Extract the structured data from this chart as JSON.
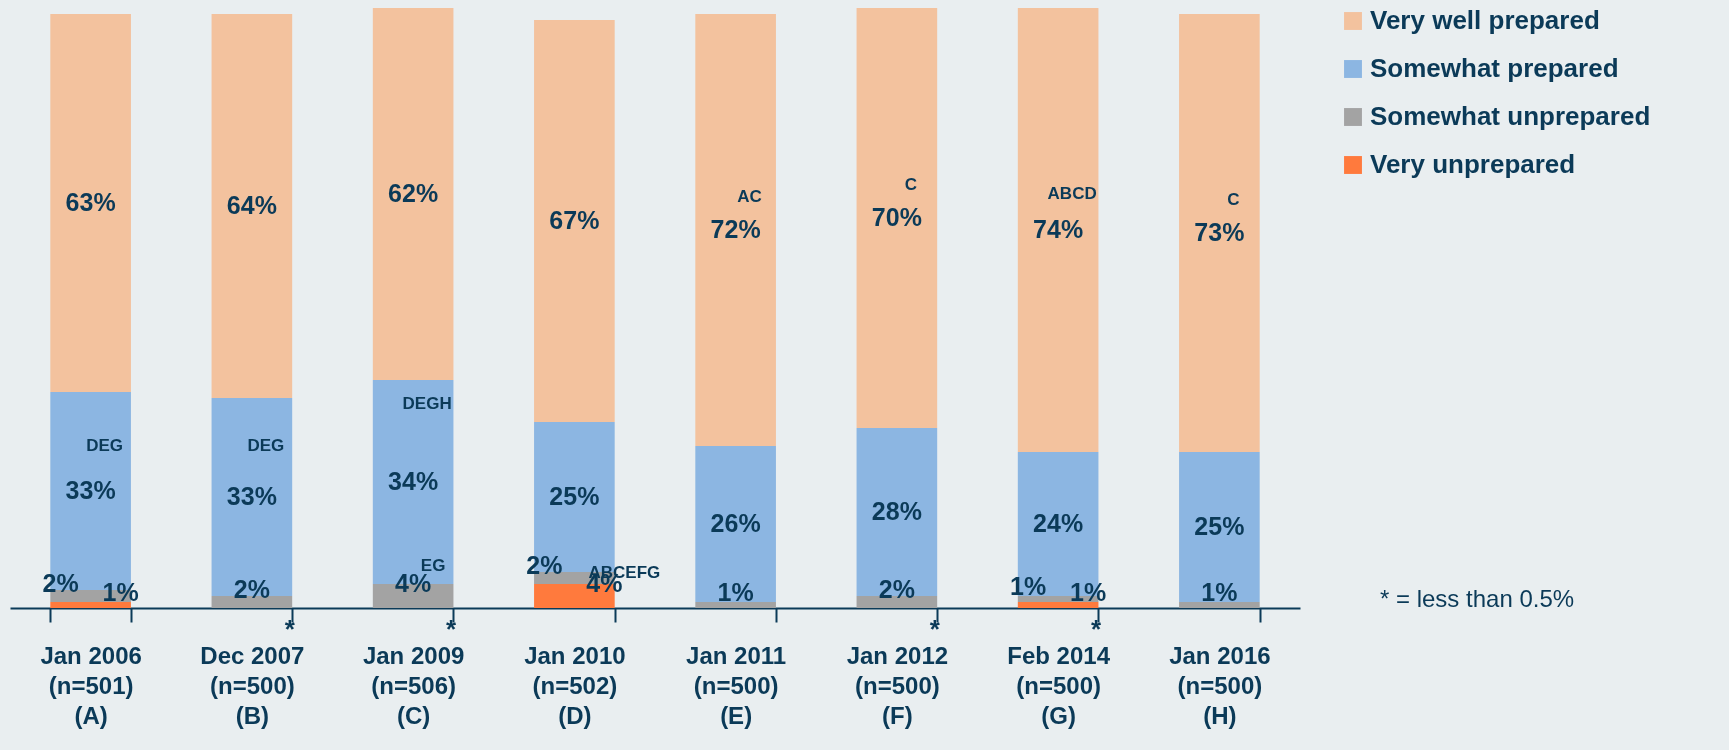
{
  "chart_data": {
    "type": "bar",
    "stacked": true,
    "categories": [
      "Jan 2006\n(n=501)\n(A)",
      "Dec 2007\n(n=500)\n(B)",
      "Jan 2009\n(n=506)\n(C)",
      "Jan 2010\n(n=502)\n(D)",
      "Jan 2011\n(n=500)\n(E)",
      "Jan 2012\n(n=500)\n(F)",
      "Feb 2014\n(n=500)\n(G)",
      "Jan 2016\n(n=500)\n(H)"
    ],
    "series": [
      {
        "name": "Very unprepared",
        "color": "#ff7a3d",
        "values": [
          1,
          null,
          null,
          4,
          null,
          null,
          1,
          null
        ],
        "value_labels": [
          "1%",
          null,
          null,
          "4%",
          null,
          null,
          "1%",
          null
        ]
      },
      {
        "name": "Somewhat unprepared",
        "color": "#a3a3a3",
        "values": [
          2,
          2,
          4,
          2,
          1,
          2,
          1,
          1
        ],
        "value_labels": [
          "2%",
          "2%",
          "4%",
          "2%",
          "1%",
          "2%",
          "1%",
          "1%"
        ]
      },
      {
        "name": "Somewhat prepared",
        "color": "#8cb6e2",
        "values": [
          33,
          33,
          34,
          25,
          26,
          28,
          24,
          25
        ],
        "value_labels": [
          "33%",
          "33%",
          "34%",
          "25%",
          "26%",
          "28%",
          "24%",
          "25%"
        ]
      },
      {
        "name": "Very well prepared",
        "color": "#f3c29e",
        "values": [
          63,
          64,
          62,
          67,
          72,
          70,
          74,
          73
        ],
        "value_labels": [
          "63%",
          "64%",
          "62%",
          "67%",
          "72%",
          "70%",
          "74%",
          "73%"
        ]
      }
    ],
    "legend": "right",
    "annotations": [
      "DEG",
      "DEG",
      "DEGH",
      "EG",
      "ABCEFG",
      "AC",
      "C",
      "ABCD",
      "C",
      {
        "text": "*",
        "x": "Dec 2007\n(n=500)\n(B)",
        "y": 0
      },
      {
        "text": "*",
        "x": "Jan 2009\n(n=506)\n(C)",
        "y": 0
      },
      {
        "text": "*",
        "x": "Jan 2012\n(n=500)\n(F)",
        "y": 0
      },
      {
        "text": "*",
        "x": "Feb 2014\n(n=500)\n(G)",
        "y": 0
      },
      "* = less than 0.5%"
    ]
  }
}
